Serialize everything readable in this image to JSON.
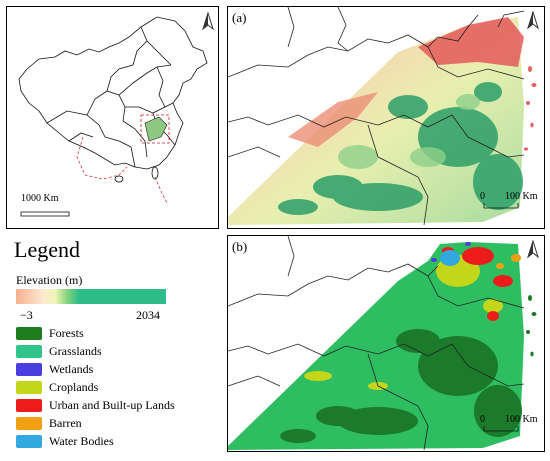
{
  "panels": {
    "a_label": "(a)",
    "b_label": "(b)"
  },
  "overview": {
    "scale_label": "1000 Km",
    "north_icon": "north-arrow"
  },
  "panel_a": {
    "scale_start": "0",
    "scale_end": "100 Km"
  },
  "panel_b": {
    "scale_start": "0",
    "scale_end": "100 Km"
  },
  "legend": {
    "title": "Legend",
    "elevation_label": "Elevation (m)",
    "elevation_min": "−3",
    "elevation_max": "2034",
    "classes": [
      {
        "label": "Forests",
        "color": "#1e7d1e"
      },
      {
        "label": "Grasslands",
        "color": "#2fc48a"
      },
      {
        "label": "Wetlands",
        "color": "#4b3ee0"
      },
      {
        "label": "Croplands",
        "color": "#c3d61a"
      },
      {
        "label": "Urban and Built-up Lands",
        "color": "#ee1b1b"
      },
      {
        "label": "Barren",
        "color": "#f0a014"
      },
      {
        "label": "Water Bodies",
        "color": "#32a8e0"
      }
    ]
  }
}
